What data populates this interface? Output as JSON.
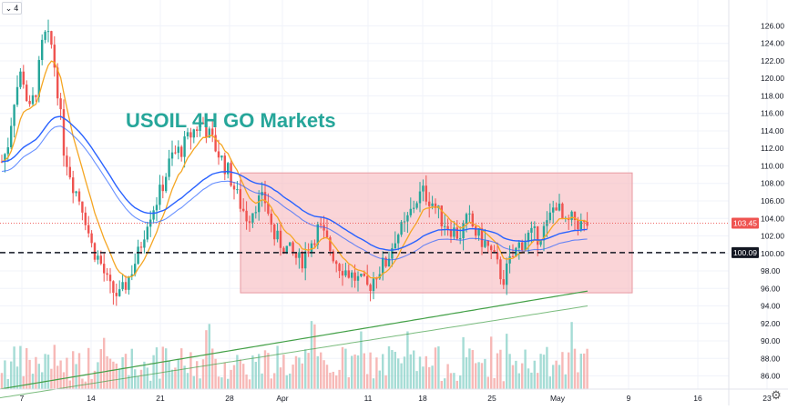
{
  "chart_data": {
    "type": "candlestick",
    "title": "USOIL 4H GO Markets",
    "symbol_badge": "4",
    "y_ticks": [
      "126.00",
      "124.00",
      "122.00",
      "120.00",
      "118.00",
      "116.00",
      "114.00",
      "112.00",
      "110.00",
      "108.00",
      "106.00",
      "104.00",
      "102.00",
      "100.00",
      "98.00",
      "96.00",
      "94.00",
      "92.00",
      "90.00",
      "88.00",
      "86.00"
    ],
    "x_ticks": [
      "7",
      "14",
      "21",
      "28",
      "Apr",
      "11",
      "18",
      "25",
      "May",
      "9",
      "16",
      "23"
    ],
    "ylim": [
      84.5,
      127.5
    ],
    "last_price": "103.45",
    "last_price_value": 103.45,
    "level_label": "100.09",
    "level_value": 100.09,
    "range_box": {
      "low": 95.5,
      "high": 109.2,
      "start": "28",
      "end": "May+"
    },
    "colors": {
      "up": "#26a69a",
      "down": "#ef5350",
      "box": "#f7b7bd",
      "ema_fast": "#f5a623",
      "ema_mid": "#2962ff",
      "ema_slow": "#43a047",
      "price_badge": "#ef5350",
      "level_badge": "#131722"
    }
  },
  "labels": {
    "settings_icon": "gear-icon"
  }
}
